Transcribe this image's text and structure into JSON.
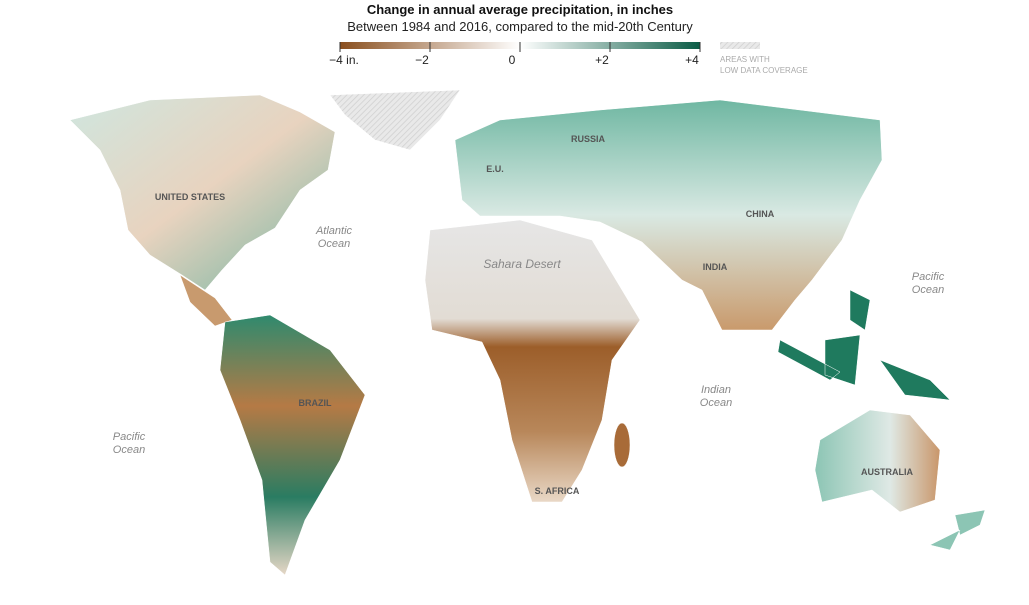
{
  "header": {
    "title": "Change in annual average precipitation, in inches",
    "subtitle": "Between 1984 and 2016, compared to the mid-20th Century"
  },
  "legend": {
    "ticks": [
      {
        "value": -4,
        "label": "−4 in."
      },
      {
        "value": -2,
        "label": "−2"
      },
      0,
      {
        "value": 2,
        "label": "+2"
      },
      {
        "value": 4,
        "label": "+4"
      }
    ],
    "colors": [
      "#8a4f1e",
      "#ffffff",
      "#0b5c46"
    ],
    "low_coverage": [
      "AREAS WITH",
      "LOW DATA COVERAGE"
    ]
  },
  "map": {
    "regions": [
      "UNITED STATES",
      "RUSSIA",
      "E.U.",
      "CHINA",
      "INDIA",
      "Sahara Desert",
      "BRAZIL",
      "S. AFRICA",
      "AUSTRALIA"
    ],
    "oceans": [
      [
        "Atlantic",
        "Ocean"
      ],
      [
        "Pacific",
        "Ocean"
      ],
      [
        "Pacific",
        "Ocean"
      ],
      [
        "Indian",
        "Ocean"
      ]
    ]
  }
}
